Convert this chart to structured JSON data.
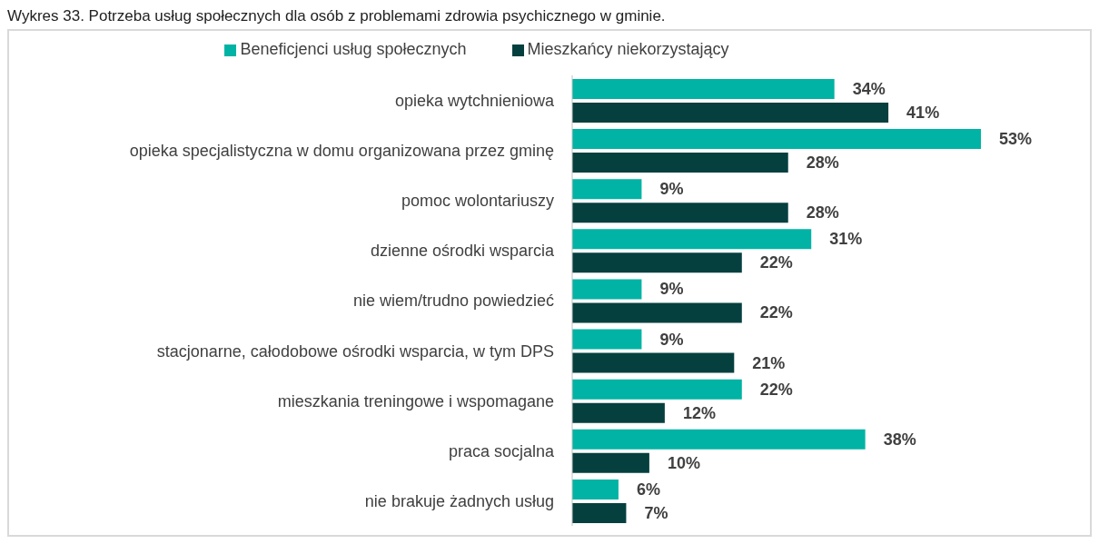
{
  "chart_data": {
    "type": "bar",
    "orientation": "horizontal",
    "title": "Wykres 33. Potrzeba usług społecznych dla osób z problemami zdrowia psychicznego w gminie.",
    "legend": "top",
    "categories": [
      "opieka wytchnieniowa",
      "opieka specjalistyczna w domu organizowana przez gminę",
      "pomoc wolontariuszy",
      "dzienne ośrodki wsparcia",
      "nie wiem/trudno powiedzieć",
      "stacjonarne, całodobowe ośrodki wsparcia, w tym DPS",
      "mieszkania treningowe i wspomagane",
      "praca socjalna",
      "nie brakuje żadnych usług"
    ],
    "series": [
      {
        "name": "Beneficjenci usług społecznych",
        "color": "#00b3a4",
        "values": [
          34,
          53,
          9,
          31,
          9,
          9,
          22,
          38,
          6
        ],
        "value_labels": [
          "34%",
          "53%",
          "9%",
          "31%",
          "9%",
          "9%",
          "22%",
          "38%",
          "6%"
        ]
      },
      {
        "name": "Mieszkańcy niekorzystający",
        "color": "#05403f",
        "values": [
          41,
          28,
          28,
          22,
          22,
          21,
          12,
          10,
          7
        ],
        "value_labels": [
          "41%",
          "28%",
          "28%",
          "22%",
          "22%",
          "21%",
          "12%",
          "10%",
          "7%"
        ]
      }
    ]
  }
}
